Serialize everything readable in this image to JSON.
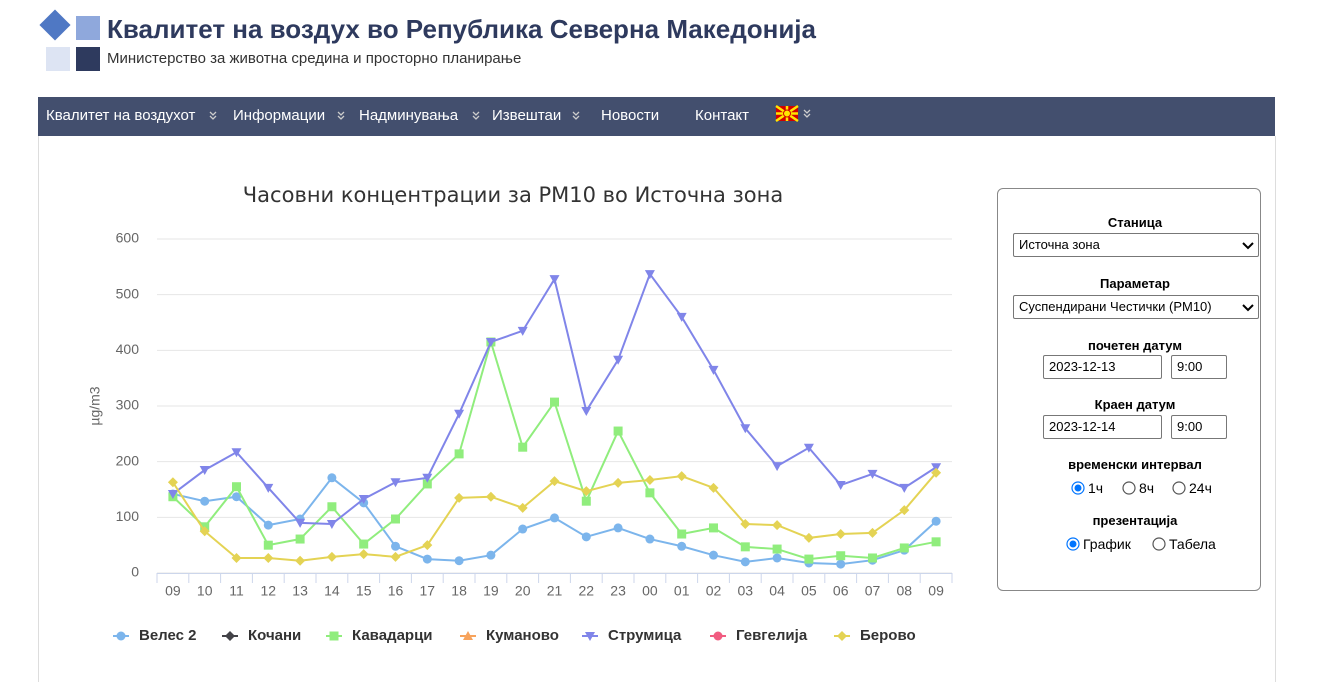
{
  "header": {
    "title": "Квалитет на воздух во Република Северна Македонија",
    "subtitle": "Министерство за животна средина и просторно планирање"
  },
  "nav": {
    "items": [
      "Квалитет на воздухот",
      "Информации",
      "Надминувања",
      "Извештаи",
      "Новости",
      "Контакт"
    ]
  },
  "chart_data": {
    "type": "line",
    "title": "Часовни концентрации за PM10 во Источна зона",
    "y_label": "µg/m3",
    "categories": [
      "09",
      "10",
      "11",
      "12",
      "13",
      "14",
      "15",
      "16",
      "17",
      "18",
      "19",
      "20",
      "21",
      "22",
      "23",
      "00",
      "01",
      "02",
      "03",
      "04",
      "05",
      "06",
      "07",
      "08",
      "09"
    ],
    "ylim": [
      0,
      600
    ],
    "yticks": [
      0,
      100,
      200,
      300,
      400,
      500,
      600
    ],
    "grid": true,
    "series": [
      {
        "name": "Велес 2",
        "color": "#7cb5ec",
        "marker": "circle",
        "values": [
          142,
          129,
          137,
          86,
          97,
          171,
          126,
          48,
          25,
          22,
          32,
          79,
          99,
          65,
          81,
          61,
          48,
          32,
          20,
          27,
          18,
          16,
          23,
          41,
          93
        ]
      },
      {
        "name": "Кочани",
        "color": "#434348",
        "marker": "diamond",
        "values": [
          null,
          null,
          null,
          null,
          null,
          null,
          null,
          null,
          null,
          null,
          null,
          null,
          null,
          null,
          null,
          null,
          null,
          null,
          null,
          null,
          null,
          null,
          null,
          null,
          null
        ]
      },
      {
        "name": "Кавадарци",
        "color": "#90ed7d",
        "marker": "square",
        "values": [
          137,
          83,
          155,
          50,
          61,
          119,
          52,
          97,
          160,
          214,
          415,
          226,
          307,
          129,
          255,
          144,
          70,
          81,
          47,
          43,
          25,
          31,
          27,
          45,
          56
        ]
      },
      {
        "name": "Куманово",
        "color": "#f7a35c",
        "marker": "triangle",
        "values": [
          null,
          null,
          null,
          null,
          null,
          null,
          null,
          null,
          null,
          null,
          null,
          null,
          null,
          null,
          null,
          null,
          null,
          null,
          null,
          null,
          null,
          null,
          null,
          null,
          null
        ]
      },
      {
        "name": "Струмица",
        "color": "#8085e9",
        "marker": "triangle-down",
        "values": [
          142,
          185,
          217,
          153,
          90,
          88,
          133,
          163,
          171,
          286,
          415,
          435,
          528,
          291,
          383,
          537,
          460,
          365,
          260,
          192,
          225,
          158,
          178,
          153,
          190
        ]
      },
      {
        "name": "Гевгелија",
        "color": "#f15c80",
        "marker": "circle",
        "values": [
          null,
          null,
          null,
          null,
          null,
          null,
          null,
          null,
          null,
          null,
          null,
          null,
          null,
          null,
          null,
          null,
          null,
          null,
          null,
          null,
          null,
          null,
          null,
          null,
          null
        ]
      },
      {
        "name": "Берово",
        "color": "#e4d354",
        "marker": "diamond",
        "values": [
          163,
          75,
          27,
          27,
          22,
          29,
          34,
          29,
          50,
          135,
          137,
          117,
          165,
          147,
          162,
          167,
          174,
          153,
          88,
          86,
          63,
          70,
          72,
          113,
          180
        ]
      }
    ]
  },
  "form": {
    "station_label": "Станица",
    "station": "Источна зона",
    "parameter_label": "Параметар",
    "parameter": "Суспендирани Честички (PM10)",
    "start_label": "почетен датум",
    "start_date": "2023-12-13",
    "start_time": "9:00",
    "end_label": "Краен датум",
    "end_date": "2023-12-14",
    "end_time": "9:00",
    "interval_label": "временски интервал",
    "interval_options": [
      "1ч",
      "8ч",
      "24ч"
    ],
    "interval_selected": 0,
    "presentation_label": "презентација",
    "presentation_options": [
      "График",
      "Табела"
    ],
    "presentation_selected": 0
  }
}
